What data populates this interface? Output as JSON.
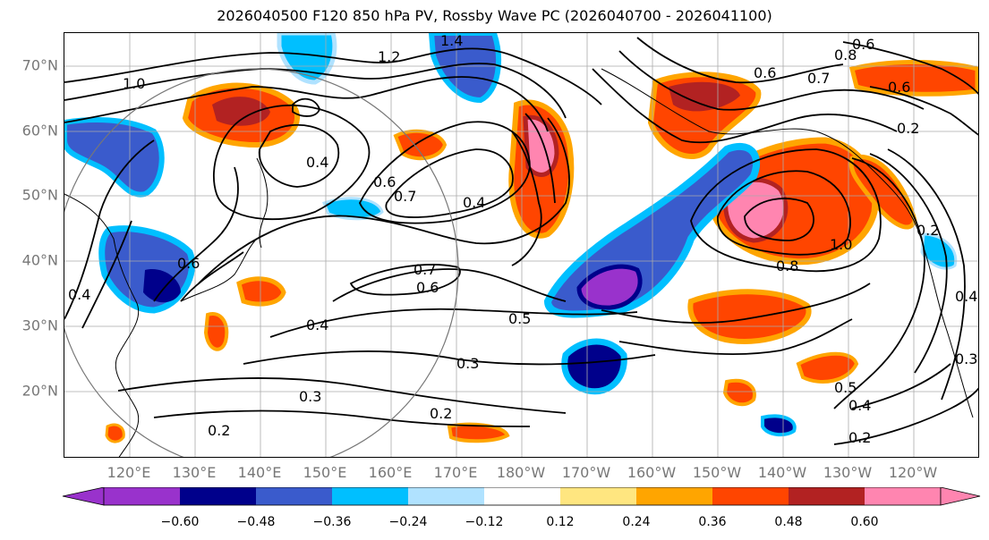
{
  "title": "2026040500 F120 850 hPa PV, Rossby Wave PC (2026040700 - 2026041100)",
  "latitudes": [
    "70°N",
    "60°N",
    "50°N",
    "40°N",
    "30°N",
    "20°N"
  ],
  "longitudes": [
    "120°E",
    "130°E",
    "140°E",
    "150°E",
    "160°E",
    "170°E",
    "180°W",
    "170°W",
    "160°W",
    "150°W",
    "140°W",
    "130°W",
    "120°W"
  ],
  "contour_labels": [
    "1.4",
    "1.2",
    "1.0",
    "0.6",
    "0.8",
    "0.6",
    "0.7",
    "0.6",
    "0.2",
    "0.4",
    "0.6",
    "0.7",
    "0.4",
    "0.7",
    "0.6",
    "0.5",
    "0.4",
    "0.3",
    "0.3",
    "0.2",
    "0.2",
    "1.0",
    "0.8",
    "0.2",
    "0.5",
    "0.4",
    "0.2",
    "0.6",
    "0.4",
    "0.4",
    "0.3"
  ],
  "colorbar": {
    "colors": [
      "#9932cc",
      "#00008b",
      "#3a5bcc",
      "#00bfff",
      "#b0e2ff",
      "#ffffff",
      "#ffe680",
      "#ffa500",
      "#ff4500",
      "#b22222",
      "#ff85b0"
    ],
    "ticks": [
      "−0.60",
      "−0.48",
      "−0.36",
      "−0.24",
      "−0.12",
      "0.12",
      "0.24",
      "0.36",
      "0.48",
      "0.60"
    ]
  }
}
